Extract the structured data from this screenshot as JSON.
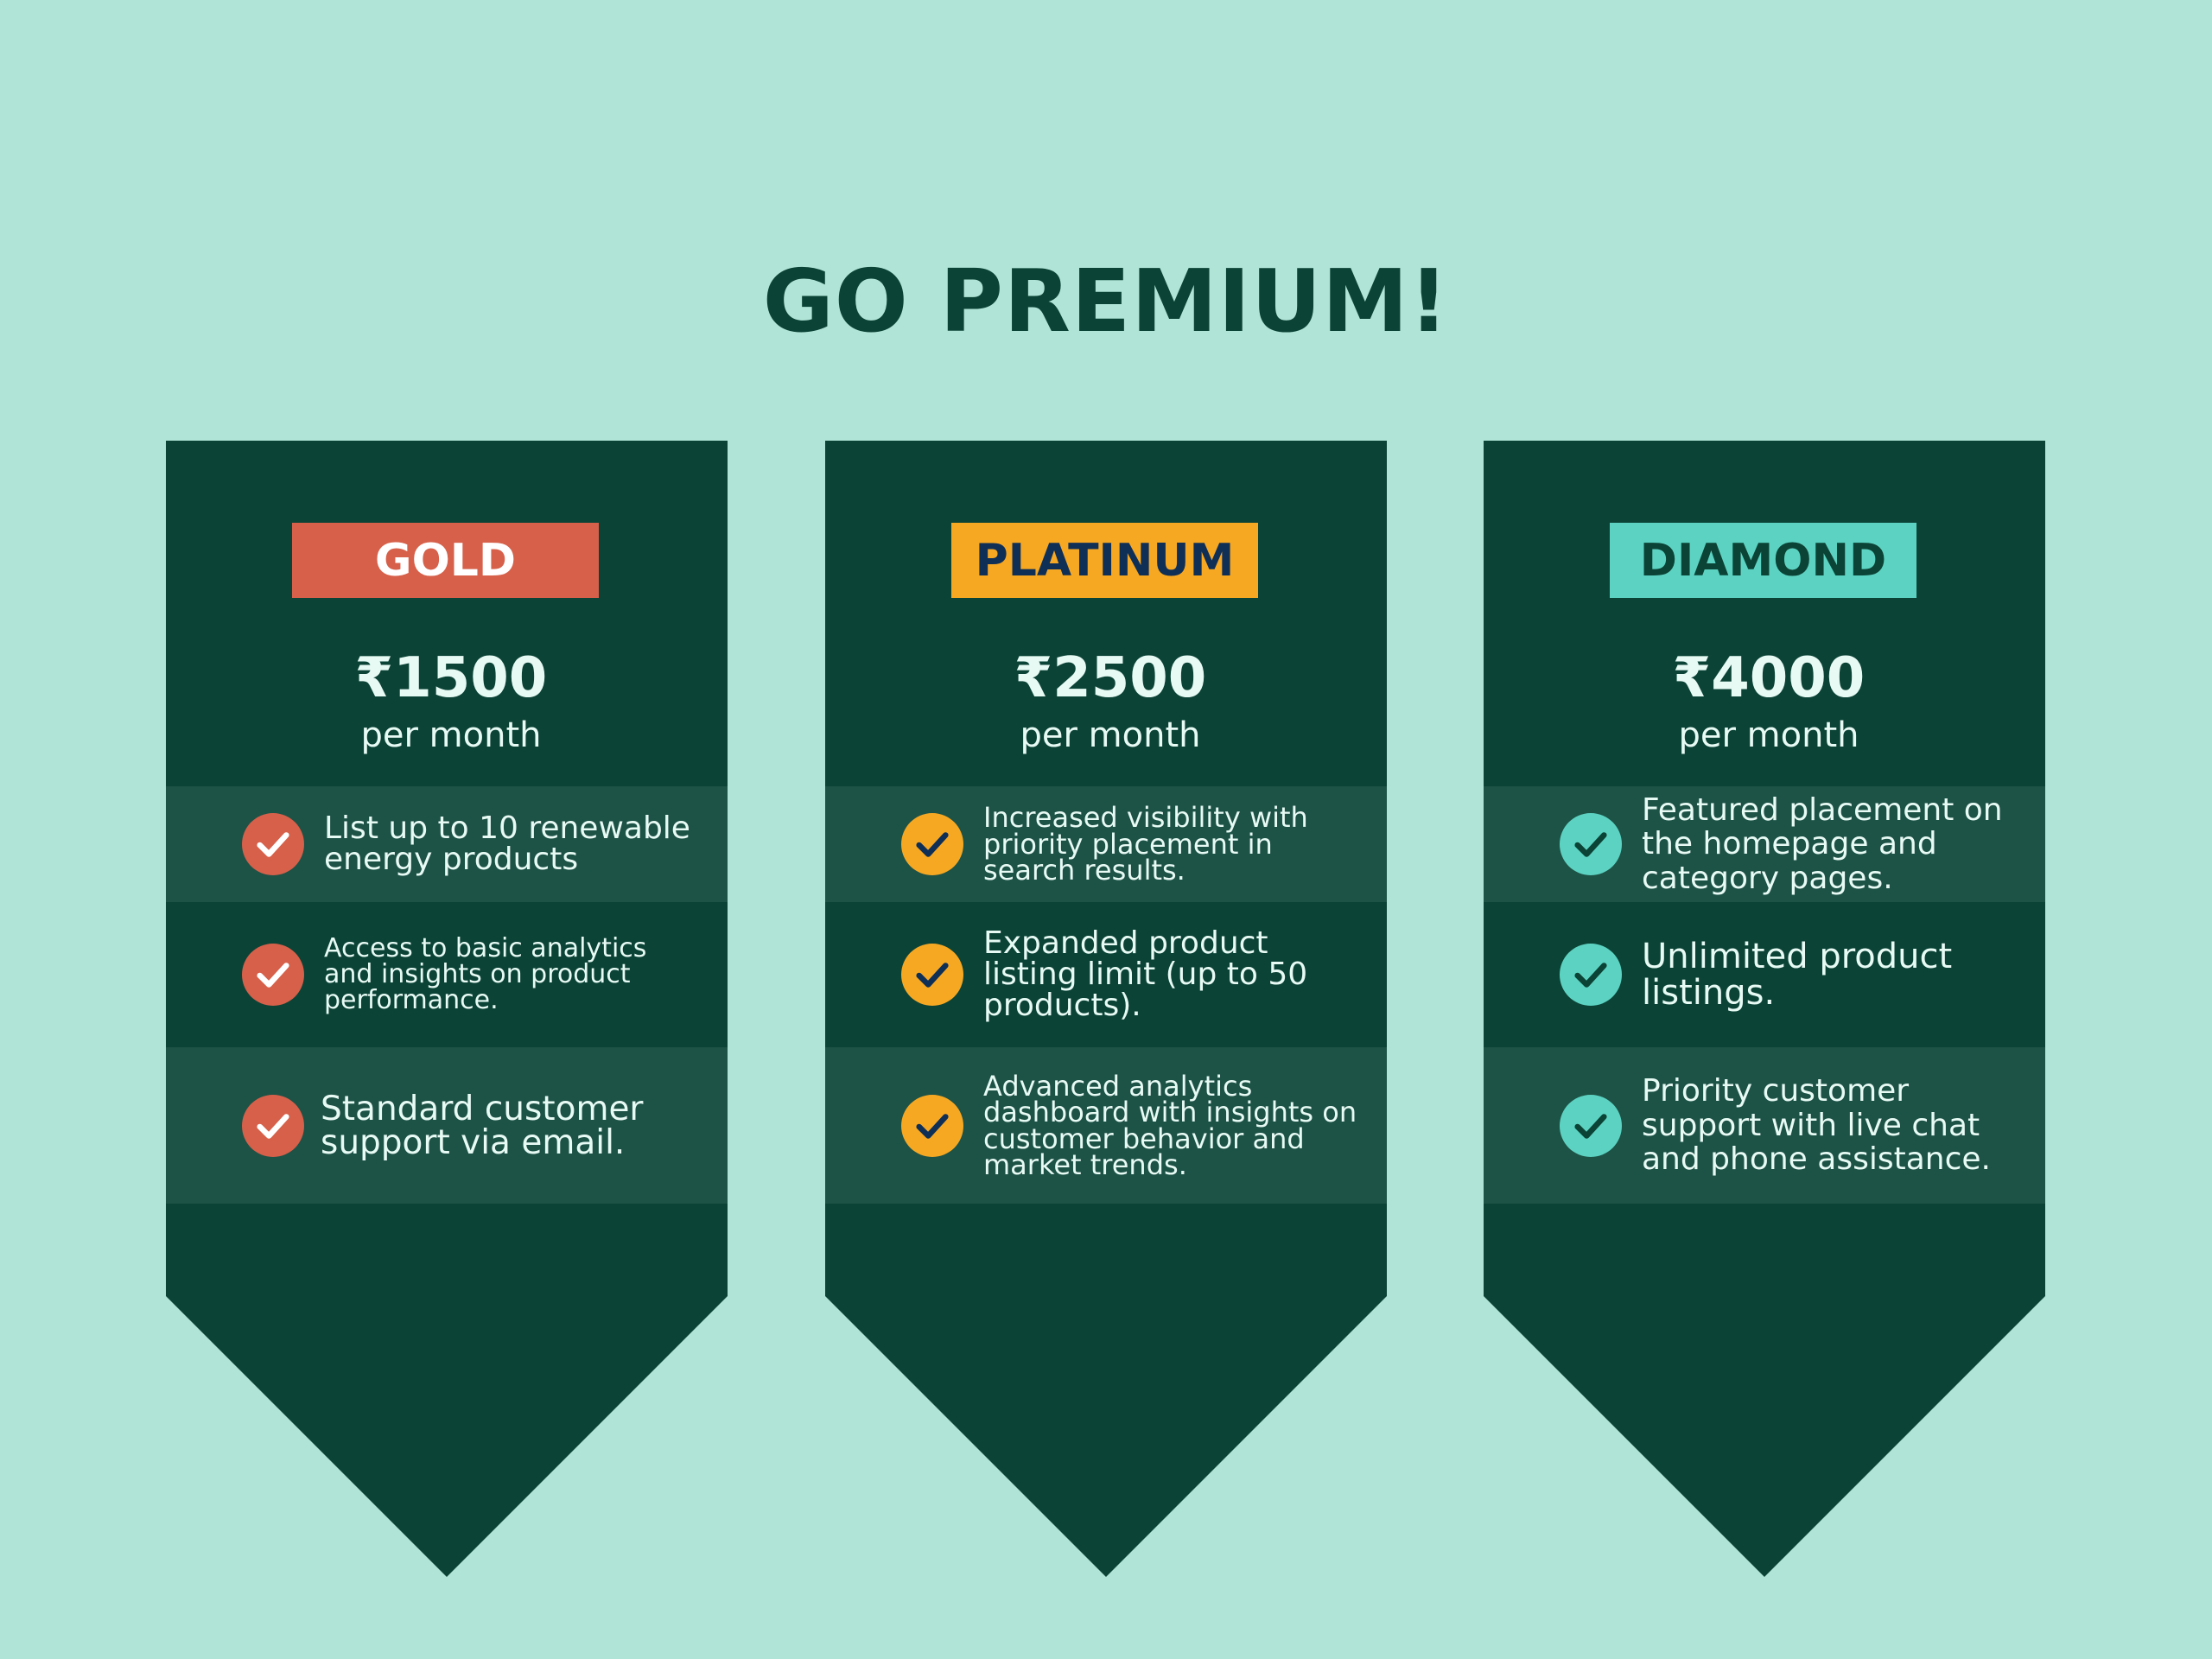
{
  "title": "GO PREMIUM!",
  "plans": [
    {
      "name": "GOLD",
      "price": "₹1500",
      "period": "per month",
      "accent": "#d6604a",
      "badge_text_color": "#ffffff",
      "check_color": "#ffffff",
      "check_icon": "check-icon",
      "features": [
        "List up to 10 renewable energy products",
        "Access to basic analytics and insights on product performance.",
        "Standard customer support via email."
      ]
    },
    {
      "name": "PLATINUM",
      "price": "₹2500",
      "period": "per month",
      "accent": "#f7a823",
      "badge_text_color": "#0f2f57",
      "check_color": "#0f2f57",
      "check_icon": "check-icon",
      "features": [
        "Increased visibility with priority placement in search results.",
        "Expanded product listing limit (up to 50 products).",
        "Advanced analytics dashboard with insights on customer behavior and market trends."
      ]
    },
    {
      "name": "DIAMOND",
      "price": "₹4000",
      "period": "per month",
      "accent": "#5cd3c2",
      "badge_text_color": "#0b4336",
      "check_color": "#0b4336",
      "check_icon": "check-icon",
      "features": [
        "Featured placement on the homepage and category pages.",
        "Unlimited product listings.",
        "Priority customer support with live chat and phone assistance."
      ]
    }
  ],
  "colors": {
    "background": "#b0e4d6",
    "card": "#0b4336",
    "card_row_shade": "#1d5246",
    "title": "#0b4336",
    "card_text": "#e7faf4"
  }
}
